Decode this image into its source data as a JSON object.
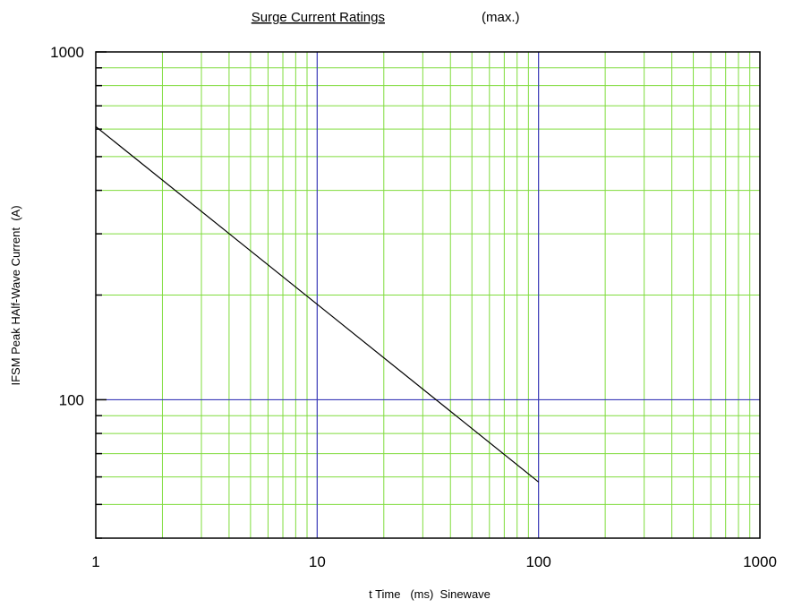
{
  "chart_data": {
    "type": "line",
    "title": "Surge Current Ratings",
    "title_suffix": "(max.)",
    "xlabel": "t Time   (ms)  Sinewave",
    "ylabel": "IFSM Peak HAlf-Wave Current  (A)",
    "x_scale": "log",
    "y_scale": "log",
    "xlim": [
      1,
      1000
    ],
    "ylim": [
      40,
      1000
    ],
    "x_ticks": [
      {
        "value": 1,
        "label": "1"
      },
      {
        "value": 10,
        "label": "10"
      },
      {
        "value": 100,
        "label": "100"
      },
      {
        "value": 1000,
        "label": "1000"
      }
    ],
    "y_ticks": [
      {
        "value": 100,
        "label": "100"
      },
      {
        "value": 1000,
        "label": "1000"
      }
    ],
    "grid": true,
    "colors": {
      "minor_grid": "#7fdc3c",
      "major_grid": "#3a3ab8",
      "line": "#000000",
      "frame": "#000000"
    },
    "series": [
      {
        "x": [
          1,
          100
        ],
        "y": [
          610,
          58
        ]
      }
    ]
  }
}
